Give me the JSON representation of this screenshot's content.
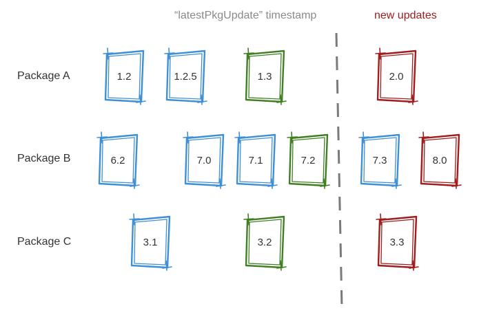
{
  "headers": {
    "timestamp": "“latestPkgUpdate” timestamp",
    "new_updates": "new updates"
  },
  "colors": {
    "old_version": "#3f8fd6",
    "latest_timestamp_version": "#3f7f22",
    "new_update": "#a11c1c",
    "divider": "#7a7a7a",
    "label": "#333333"
  },
  "packages": [
    {
      "name": "Package A",
      "versions": [
        {
          "label": "1.2",
          "status": "old"
        },
        {
          "label": "1.2.5",
          "status": "old"
        },
        {
          "label": "1.3",
          "status": "latest_timestamp"
        },
        {
          "label": "2.0",
          "status": "new"
        }
      ]
    },
    {
      "name": "Package B",
      "versions": [
        {
          "label": "6.2",
          "status": "old"
        },
        {
          "label": "7.0",
          "status": "old"
        },
        {
          "label": "7.1",
          "status": "old"
        },
        {
          "label": "7.2",
          "status": "latest_timestamp"
        },
        {
          "label": "7.3",
          "status": "old"
        },
        {
          "label": "8.0",
          "status": "new"
        }
      ]
    },
    {
      "name": "Package C",
      "versions": [
        {
          "label": "3.1",
          "status": "old"
        },
        {
          "label": "3.2",
          "status": "latest_timestamp"
        },
        {
          "label": "3.3",
          "status": "new"
        }
      ]
    }
  ]
}
